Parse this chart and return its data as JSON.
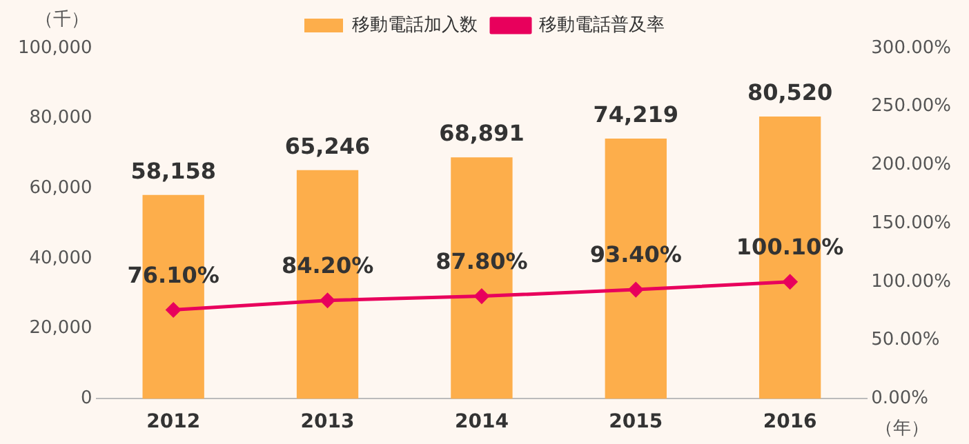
{
  "chart_data": {
    "type": "bar",
    "ylabel": "（千）",
    "xlabel": "（年）",
    "categories": [
      "2012",
      "2013",
      "2014",
      "2015",
      "2016"
    ],
    "series": [
      {
        "name": "移動電話加入数",
        "color": "#fdae4b",
        "values": [
          58158,
          65246,
          68891,
          74219,
          80520
        ],
        "value_labels": [
          "58,158",
          "65,246",
          "68,891",
          "74,219",
          "80,520"
        ]
      },
      {
        "name": "移動電話普及率",
        "type": "line",
        "axis": "y2",
        "color": "#e8005c",
        "marker": "diamond",
        "values": [
          76.1,
          84.2,
          87.8,
          93.4,
          100.1
        ],
        "value_labels": [
          "76.10%",
          "84.20%",
          "87.80%",
          "93.40%",
          "100.10%"
        ]
      }
    ],
    "ylim": [
      0,
      100000
    ],
    "yticks": [
      0,
      {
        "value": 20000,
        "label": "20,000"
      },
      {
        "value": 40000,
        "label": "40,000"
      },
      {
        "value": 60000,
        "label": "60,000"
      },
      {
        "value": 80000,
        "label": "80,000"
      },
      {
        "value": 100000,
        "label": "100,000"
      }
    ],
    "y2lim": [
      0,
      300
    ],
    "y2ticks": [
      {
        "value": 0,
        "label": "0.00%"
      },
      {
        "value": 50,
        "label": "50.00%"
      },
      {
        "value": 100,
        "label": "100.00%"
      },
      {
        "value": 150,
        "label": "150.00%"
      },
      {
        "value": 200,
        "label": "200.00%"
      },
      {
        "value": 250,
        "label": "250.00%"
      },
      {
        "value": 300,
        "label": "300.00%"
      }
    ],
    "grid": false,
    "legend": "top"
  }
}
